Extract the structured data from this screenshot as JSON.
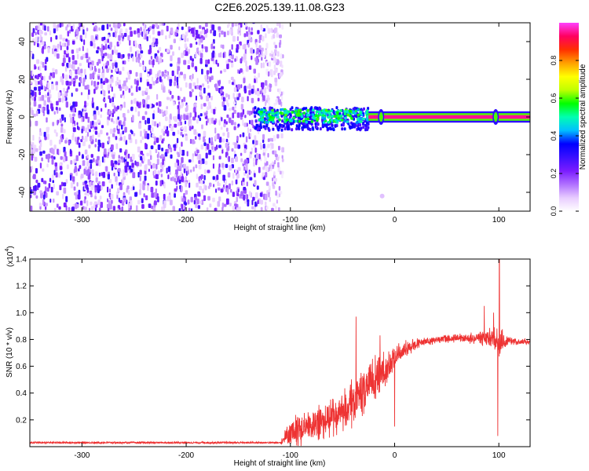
{
  "figure": {
    "title": "C2E6.2025.139.11.08.G23"
  },
  "chart_data": [
    {
      "type": "heatmap",
      "name": "spectrogram",
      "xlabel": "Height of straight line (km)",
      "ylabel": "Frequency (Hz)",
      "xlim": [
        -350,
        130
      ],
      "ylim": [
        -50,
        50
      ],
      "x_ticks": [
        -300,
        -200,
        -100,
        0,
        100
      ],
      "y_ticks": [
        -40,
        -20,
        0,
        20,
        40
      ],
      "colorbar": {
        "label": "Normalized spectral amplitude",
        "range": [
          0,
          1
        ],
        "ticks": [
          "0.0",
          "0.2",
          "0.4",
          "0.6",
          "0.8"
        ],
        "colors": [
          "#ffffff",
          "#e8ccff",
          "#b070ff",
          "#7a1cff",
          "#3a10ff",
          "#0000ff",
          "#00c0ff",
          "#00ffb0",
          "#00ff00",
          "#c0ff00",
          "#ffff00",
          "#ffa000",
          "#ff3000",
          "#ff0060",
          "#ff40ff"
        ]
      },
      "regions": {
        "noise_band": {
          "x": [
            -350,
            -115
          ],
          "y": [
            -50,
            50
          ],
          "amplitude": [
            0.05,
            0.3
          ]
        },
        "signal_onset_x": -135,
        "signal_scatter": {
          "x": [
            -130,
            -25
          ],
          "y": [
            -3,
            4
          ],
          "amplitude": [
            0.4,
            0.6
          ]
        },
        "carrier_line": {
          "x": [
            -25,
            130
          ],
          "y": 0,
          "amplitude": 0.95
        },
        "carrier_spikes_x": [
          -13,
          97
        ]
      }
    },
    {
      "type": "line",
      "name": "snr",
      "xlabel": "Height of straight line (km)",
      "ylabel": "SNR (10 * v/v)",
      "multiplier": "(x10",
      "multiplier_exp": "4",
      "color": "#ee3333",
      "xlim": [
        -350,
        130
      ],
      "ylim": [
        0,
        1.4
      ],
      "x_ticks": [
        -300,
        -200,
        -100,
        0,
        100
      ],
      "y_ticks": [
        "0.2",
        "0.4",
        "0.6",
        "0.8",
        "1.0",
        "1.2",
        "1.4"
      ],
      "envelope": {
        "x": [
          -350,
          -110,
          -100,
          -80,
          -60,
          -40,
          -25,
          -15,
          -5,
          0,
          10,
          25,
          40,
          60,
          80,
          95,
          100,
          110,
          130
        ],
        "y": [
          0.03,
          0.03,
          0.1,
          0.16,
          0.22,
          0.33,
          0.48,
          0.55,
          0.62,
          0.67,
          0.73,
          0.78,
          0.8,
          0.81,
          0.81,
          0.8,
          0.78,
          0.79,
          0.78
        ],
        "amp": [
          0.006,
          0.006,
          0.08,
          0.09,
          0.1,
          0.12,
          0.13,
          0.12,
          0.1,
          0.06,
          0.04,
          0.025,
          0.02,
          0.02,
          0.035,
          0.06,
          0.08,
          0.02,
          0.015
        ]
      },
      "spikes": [
        {
          "x": -37,
          "y": 0.97
        },
        {
          "x": -14,
          "y": 0.83
        },
        {
          "x": 0,
          "y": 0.15
        },
        {
          "x": 86,
          "y": 1.05
        },
        {
          "x": 95,
          "y": 1.0
        },
        {
          "x": 99,
          "y": 0.08
        },
        {
          "x": 100.5,
          "y": 1.4
        }
      ]
    }
  ]
}
